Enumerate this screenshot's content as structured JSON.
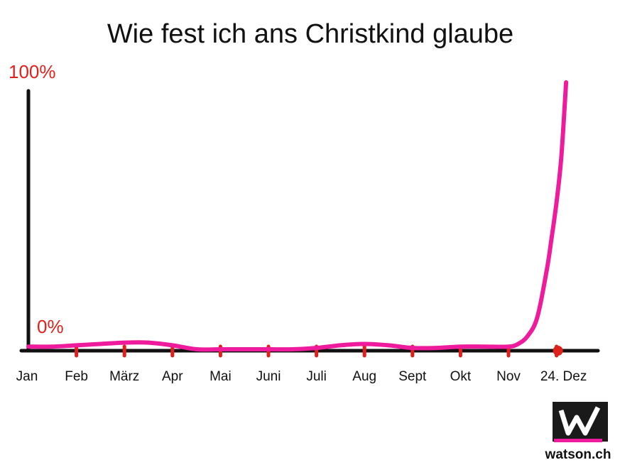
{
  "chart_data": {
    "type": "line",
    "title": "Wie fest ich ans Christkind glaube",
    "xlabel": "",
    "ylabel": "",
    "ylim": [
      0,
      100
    ],
    "y_tick_labels": [
      "0%",
      "100%"
    ],
    "categories": [
      "Jan",
      "Feb",
      "März",
      "Apr",
      "Mai",
      "Juni",
      "Juli",
      "Aug",
      "Sept",
      "Okt",
      "Nov",
      "24. Dez"
    ],
    "series": [
      {
        "color": "#ee1c9c",
        "x": [
          0,
          0.5,
          1,
          1.5,
          2,
          2.5,
          3,
          3.5,
          4,
          4.5,
          5,
          5.5,
          6,
          6.5,
          7,
          7.5,
          8,
          8.5,
          9,
          9.5,
          10,
          10.2,
          10.4,
          10.6,
          10.8,
          10.9,
          11.0,
          11.1,
          11.2
        ],
        "values": [
          1,
          1,
          1.5,
          2,
          2.5,
          2.5,
          1.5,
          0,
          0,
          0,
          0,
          0,
          0.5,
          1.5,
          2,
          1.5,
          0.5,
          0.5,
          1,
          1,
          1,
          2,
          5,
          12,
          30,
          42,
          55,
          72,
          100
        ]
      }
    ],
    "grid": false,
    "legend": "none"
  },
  "colors": {
    "line": "#ee1c9c",
    "axis": "#111111",
    "ticks": "#e0201c",
    "percent_labels": "#e0201c"
  },
  "logo": {
    "text": "watson.ch",
    "icon": "watson-w-logo"
  }
}
